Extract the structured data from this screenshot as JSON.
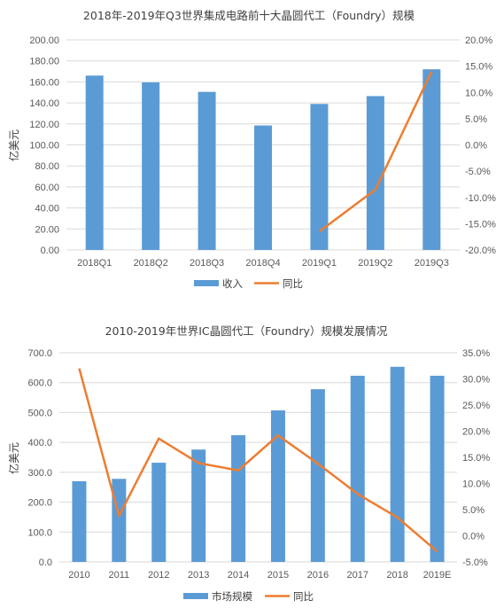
{
  "chart_data": [
    {
      "type": "bar",
      "title": "2018年-2019年Q3世界集成电路前十大晶圆代工（Foundry）规模",
      "ylabel": "亿美元",
      "categories": [
        "2018Q1",
        "2018Q2",
        "2018Q3",
        "2018Q4",
        "2019Q1",
        "2019Q2",
        "2019Q3"
      ],
      "series": [
        {
          "name": "收入",
          "kind": "bar",
          "axis": "left",
          "color": "#5b9bd5",
          "values": [
            166.0,
            159.5,
            150.5,
            118.5,
            139.0,
            146.5,
            172.0
          ]
        },
        {
          "name": "同比",
          "kind": "line",
          "axis": "right",
          "color": "#ed7d31",
          "values": [
            null,
            null,
            null,
            null,
            -16.5,
            -8.5,
            14.0
          ]
        }
      ],
      "ylim": [
        0,
        200
      ],
      "yticks": [
        "0.00",
        "20.00",
        "40.00",
        "60.00",
        "80.00",
        "100.00",
        "120.00",
        "140.00",
        "160.00",
        "180.00",
        "200.00"
      ],
      "y2lim": [
        -20,
        20
      ],
      "y2ticks": [
        "-20.0%",
        "-15.0%",
        "-10.0%",
        "-5.0%",
        "0.0%",
        "5.0%",
        "10.0%",
        "15.0%",
        "20.0%"
      ],
      "grid": true,
      "legend": "bottom"
    },
    {
      "type": "bar",
      "title": "2010-2019年世界IC晶圆代工（Foundry）规模发展情况",
      "ylabel": "亿美元",
      "categories": [
        "2010",
        "2011",
        "2012",
        "2013",
        "2014",
        "2015",
        "2016",
        "2017",
        "2018",
        "2019E"
      ],
      "series": [
        {
          "name": "市场规模",
          "kind": "bar",
          "axis": "left",
          "color": "#5b9bd5",
          "values": [
            270,
            278,
            332,
            376,
            424,
            507,
            578,
            623,
            653,
            623
          ]
        },
        {
          "name": "同比",
          "kind": "line",
          "axis": "right",
          "color": "#ed7d31",
          "values": [
            32.0,
            3.8,
            18.6,
            13.9,
            12.5,
            19.2,
            13.8,
            8.0,
            3.5,
            -3.0
          ]
        }
      ],
      "ylim": [
        0,
        700
      ],
      "yticks": [
        "0.0",
        "100.0",
        "200.0",
        "300.0",
        "400.0",
        "500.0",
        "600.0",
        "700.0"
      ],
      "y2lim": [
        -5,
        35
      ],
      "y2ticks": [
        "-5.0%",
        "0.0%",
        "5.0%",
        "10.0%",
        "15.0%",
        "20.0%",
        "25.0%",
        "30.0%",
        "35.0%"
      ],
      "grid": true,
      "legend": "bottom"
    }
  ]
}
